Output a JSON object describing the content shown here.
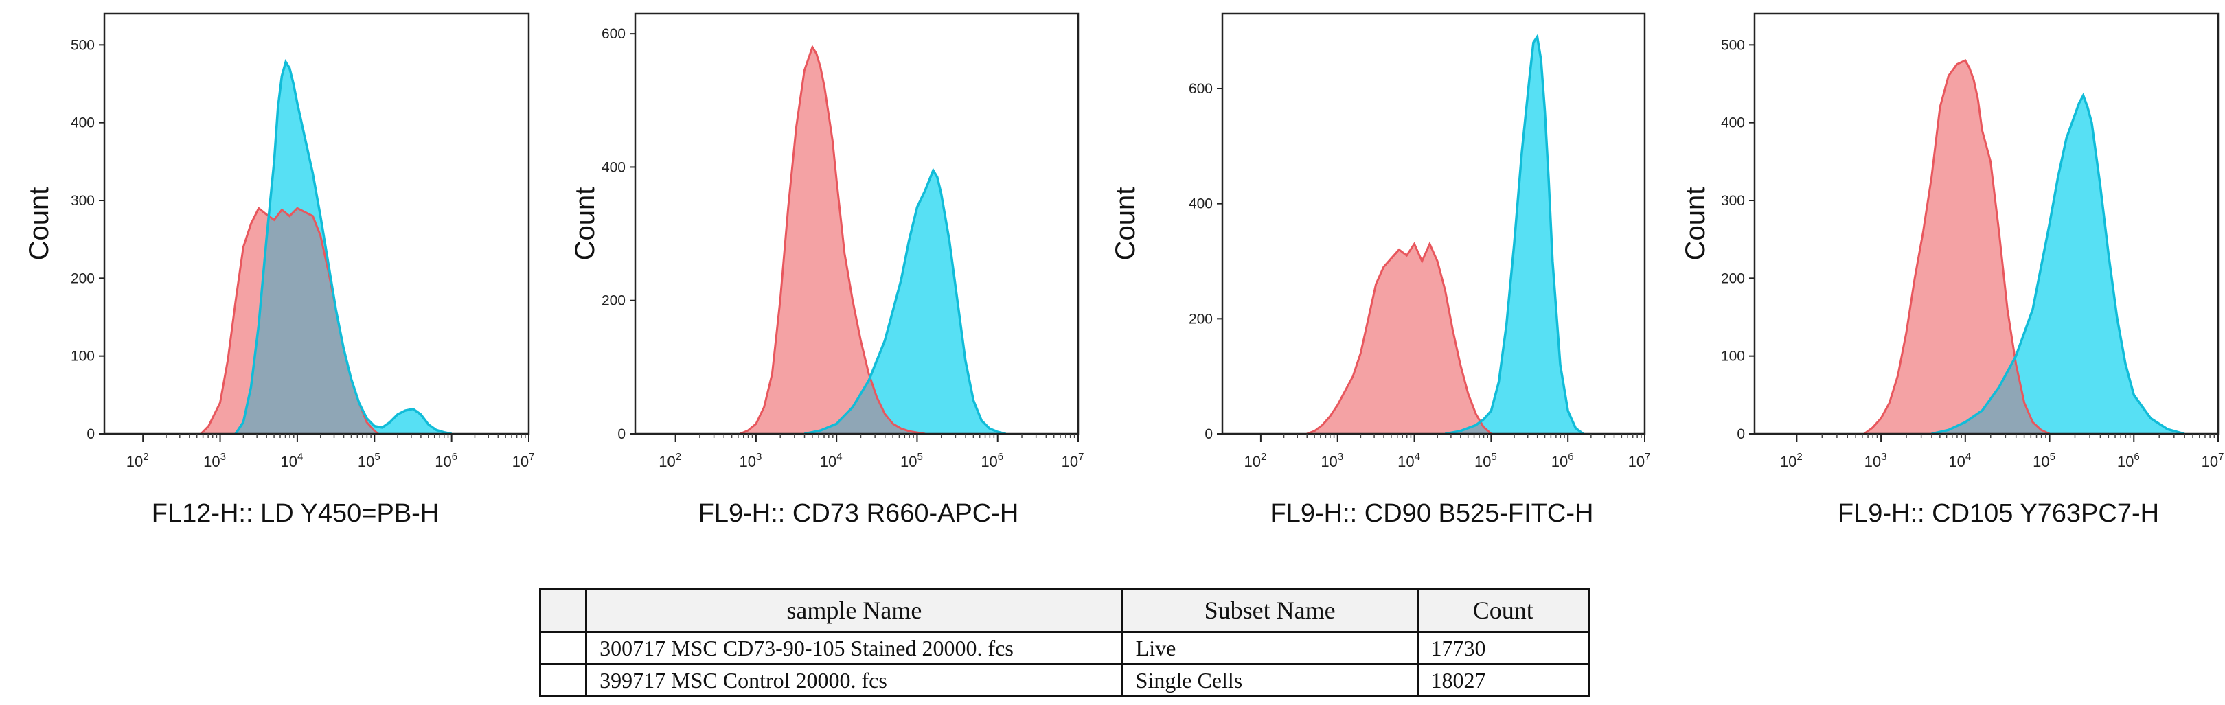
{
  "colors": {
    "control_fill": "#f4a2a4",
    "control_line": "#e8575d",
    "stained_fill": "#57e0f4",
    "stained_line": "#11bcd8",
    "overlap_fill": "#8fa6b6"
  },
  "chart_data": [
    {
      "type": "area",
      "title": "",
      "xlabel": "FL12-H:: LD Y450=PB-H",
      "ylabel": "Count",
      "xscale": "log10",
      "xlim": [
        1.5,
        7
      ],
      "ylim": [
        0,
        540
      ],
      "yticks": [
        0,
        100,
        200,
        300,
        400,
        500
      ],
      "xtick_exponents": [
        2,
        3,
        4,
        5,
        6,
        7
      ],
      "series": [
        {
          "name": "399717 MSC Control 20000. fcs",
          "role": "control",
          "x": [
            2.75,
            2.85,
            3.0,
            3.1,
            3.2,
            3.3,
            3.4,
            3.5,
            3.6,
            3.7,
            3.8,
            3.9,
            4.0,
            4.1,
            4.2,
            4.3,
            4.4,
            4.5,
            4.6,
            4.7,
            4.8,
            4.9,
            5.0,
            5.05
          ],
          "y": [
            0,
            10,
            40,
            95,
            170,
            240,
            270,
            290,
            282,
            275,
            288,
            280,
            290,
            285,
            280,
            255,
            210,
            160,
            110,
            70,
            40,
            15,
            4,
            0
          ]
        },
        {
          "name": "300717 MSC CD73-90-105 Stained 20000. fcs",
          "role": "stained",
          "x": [
            3.2,
            3.3,
            3.4,
            3.5,
            3.6,
            3.7,
            3.75,
            3.8,
            3.85,
            3.9,
            3.95,
            4.0,
            4.1,
            4.2,
            4.3,
            4.4,
            4.5,
            4.6,
            4.7,
            4.8,
            4.9,
            5.0,
            5.1,
            5.2,
            5.3,
            5.4,
            5.5,
            5.6,
            5.7,
            5.8,
            5.9,
            6.0
          ],
          "y": [
            0,
            15,
            60,
            140,
            250,
            350,
            420,
            460,
            478,
            470,
            450,
            425,
            380,
            335,
            280,
            220,
            160,
            110,
            70,
            40,
            20,
            10,
            8,
            15,
            25,
            30,
            32,
            25,
            12,
            5,
            2,
            0
          ]
        }
      ]
    },
    {
      "type": "area",
      "title": "",
      "xlabel": "FL9-H:: CD73 R660-APC-H",
      "ylabel": "Count",
      "xscale": "log10",
      "xlim": [
        1.5,
        7
      ],
      "ylim": [
        0,
        630
      ],
      "yticks": [
        0,
        200,
        400,
        600
      ],
      "xtick_exponents": [
        2,
        3,
        4,
        5,
        6,
        7
      ],
      "series": [
        {
          "name": "399717 MSC Control 20000. fcs",
          "role": "control",
          "x": [
            2.8,
            2.9,
            3.0,
            3.1,
            3.2,
            3.3,
            3.4,
            3.5,
            3.6,
            3.7,
            3.75,
            3.8,
            3.85,
            3.9,
            3.95,
            4.0,
            4.1,
            4.2,
            4.3,
            4.4,
            4.5,
            4.6,
            4.7,
            4.8,
            4.9,
            5.0,
            5.1
          ],
          "y": [
            0,
            5,
            15,
            40,
            90,
            200,
            340,
            460,
            545,
            580,
            570,
            550,
            520,
            480,
            440,
            380,
            270,
            200,
            140,
            90,
            55,
            30,
            15,
            8,
            4,
            2,
            0
          ]
        },
        {
          "name": "300717 MSC CD73-90-105 Stained 20000. fcs",
          "role": "stained",
          "x": [
            3.6,
            3.8,
            4.0,
            4.2,
            4.4,
            4.6,
            4.8,
            4.9,
            5.0,
            5.1,
            5.15,
            5.2,
            5.25,
            5.3,
            5.4,
            5.5,
            5.6,
            5.7,
            5.8,
            5.9,
            6.0,
            6.1
          ],
          "y": [
            0,
            5,
            15,
            40,
            80,
            140,
            230,
            290,
            340,
            365,
            380,
            395,
            385,
            360,
            290,
            200,
            110,
            50,
            20,
            8,
            3,
            0
          ]
        }
      ]
    },
    {
      "type": "area",
      "title": "",
      "xlabel": "FL9-H:: CD90 B525-FITC-H",
      "ylabel": "Count",
      "xscale": "log10",
      "xlim": [
        1.5,
        7
      ],
      "ylim": [
        0,
        730
      ],
      "yticks": [
        0,
        200,
        400,
        600
      ],
      "xtick_exponents": [
        2,
        3,
        4,
        5,
        6,
        7
      ],
      "series": [
        {
          "name": "399717 MSC Control 20000. fcs",
          "role": "control",
          "x": [
            2.6,
            2.7,
            2.8,
            2.9,
            3.0,
            3.1,
            3.2,
            3.3,
            3.4,
            3.5,
            3.6,
            3.7,
            3.8,
            3.9,
            4.0,
            4.1,
            4.2,
            4.3,
            4.4,
            4.5,
            4.6,
            4.7,
            4.8,
            4.9,
            5.0
          ],
          "y": [
            0,
            5,
            15,
            30,
            50,
            75,
            100,
            140,
            200,
            260,
            290,
            305,
            320,
            310,
            330,
            300,
            330,
            300,
            250,
            180,
            120,
            70,
            35,
            12,
            0
          ]
        },
        {
          "name": "300717 MSC CD73-90-105 Stained 20000. fcs",
          "role": "stained",
          "x": [
            4.4,
            4.6,
            4.8,
            4.9,
            5.0,
            5.1,
            5.2,
            5.3,
            5.4,
            5.5,
            5.55,
            5.6,
            5.65,
            5.7,
            5.75,
            5.8,
            5.9,
            6.0,
            6.1,
            6.2
          ],
          "y": [
            0,
            5,
            15,
            25,
            40,
            90,
            190,
            330,
            490,
            620,
            680,
            690,
            650,
            560,
            440,
            300,
            120,
            40,
            10,
            0
          ]
        }
      ]
    },
    {
      "type": "area",
      "title": "",
      "xlabel": "FL9-H:: CD105 Y763PC7-H",
      "ylabel": "Count",
      "xscale": "log10",
      "xlim": [
        1.5,
        7
      ],
      "ylim": [
        0,
        540
      ],
      "yticks": [
        0,
        100,
        200,
        300,
        400,
        500
      ],
      "xtick_exponents": [
        2,
        3,
        4,
        5,
        6,
        7
      ],
      "series": [
        {
          "name": "399717 MSC Control 20000. fcs",
          "role": "control",
          "x": [
            2.8,
            2.9,
            3.0,
            3.1,
            3.2,
            3.3,
            3.4,
            3.5,
            3.6,
            3.7,
            3.8,
            3.9,
            4.0,
            4.05,
            4.1,
            4.15,
            4.2,
            4.3,
            4.4,
            4.5,
            4.6,
            4.7,
            4.8,
            4.9,
            5.0
          ],
          "y": [
            0,
            8,
            20,
            40,
            75,
            130,
            200,
            260,
            330,
            420,
            460,
            475,
            480,
            470,
            455,
            430,
            390,
            350,
            260,
            160,
            90,
            40,
            15,
            5,
            0
          ]
        },
        {
          "name": "300717 MSC CD73-90-105 Stained 20000. fcs",
          "role": "stained",
          "x": [
            3.6,
            3.8,
            4.0,
            4.2,
            4.4,
            4.6,
            4.8,
            5.0,
            5.1,
            5.2,
            5.3,
            5.35,
            5.4,
            5.45,
            5.5,
            5.6,
            5.7,
            5.8,
            5.9,
            6.0,
            6.2,
            6.4,
            6.6
          ],
          "y": [
            0,
            5,
            15,
            30,
            60,
            100,
            160,
            270,
            330,
            380,
            410,
            425,
            435,
            420,
            400,
            320,
            230,
            150,
            90,
            50,
            20,
            6,
            0
          ]
        }
      ]
    }
  ],
  "table": {
    "headers": {
      "blank": "",
      "sample": "sample Name",
      "subset": "Subset Name",
      "count": "Count"
    },
    "rows": [
      {
        "sample": "300717 MSC CD73-90-105 Stained 20000. fcs",
        "subset": "Live",
        "count": "17730"
      },
      {
        "sample": "399717 MSC Control 20000. fcs",
        "subset": "Single Cells",
        "count": "18027"
      }
    ]
  }
}
